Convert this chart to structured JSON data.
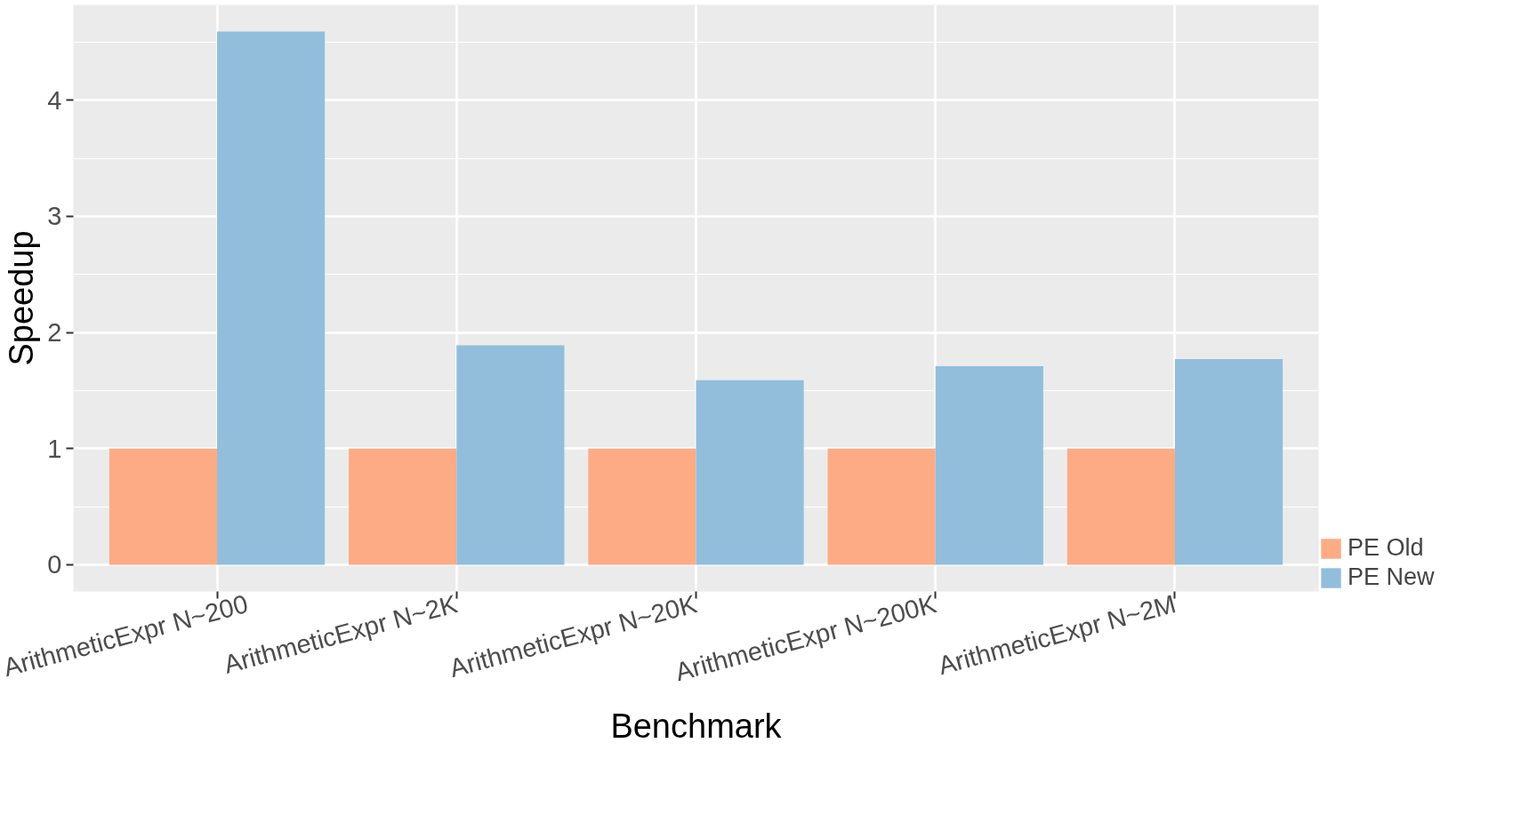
{
  "chart_data": {
    "type": "bar",
    "xlabel": "Benchmark",
    "ylabel": "Speedup",
    "categories": [
      "ArithmeticExpr N~200",
      "ArithmeticExpr N~2K",
      "ArithmeticExpr N~20K",
      "ArithmeticExpr N~200K",
      "ArithmeticExpr N~2M"
    ],
    "series": [
      {
        "name": "PE Old",
        "color": "#fcab85",
        "values": [
          1,
          1,
          1,
          1,
          1
        ]
      },
      {
        "name": "PE New",
        "color": "#92bedb",
        "values": [
          4.59,
          1.89,
          1.59,
          1.71,
          1.77
        ]
      }
    ],
    "ylim": [
      -0.23,
      4.82
    ],
    "yticks": [
      0,
      1,
      2,
      3,
      4
    ],
    "grid": true,
    "legend": "bottom right"
  }
}
